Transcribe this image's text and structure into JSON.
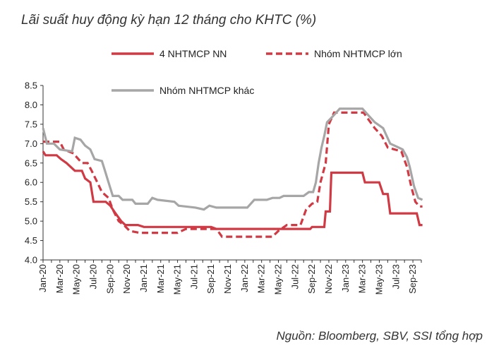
{
  "title": "Lãi suất huy động kỳ hạn 12 tháng cho KHTC (%)",
  "source": "Nguồn:  Bloomberg, SBV, SSI tổng hợp",
  "chart_data": {
    "type": "line",
    "title": "Lãi suất huy động kỳ hạn 12 tháng cho KHTC (%)",
    "xlabel": "",
    "ylabel": "",
    "ylim": [
      4.0,
      8.5
    ],
    "yticks": [
      "4.0",
      "4.5",
      "5.0",
      "5.5",
      "6.0",
      "6.5",
      "7.0",
      "7.5",
      "8.0",
      "8.5"
    ],
    "xticks": [
      "Jan-20",
      "Mar-20",
      "May-20",
      "Jul-20",
      "Sep-20",
      "Nov-20",
      "Jan-21",
      "Mar-21",
      "May-21",
      "Jul-21",
      "Sep-21",
      "Nov-21",
      "Jan-22",
      "Mar-22",
      "May-22",
      "Jul-22",
      "Sep-22",
      "Nov-22",
      "Jan-23",
      "Mar-23",
      "May-23",
      "Jul-23",
      "Sep-23"
    ],
    "x_range": [
      "Jan-20",
      "Oct-23"
    ],
    "grid": false,
    "legend_position": "top",
    "series": [
      {
        "name": "4 NHTMCP NN",
        "color": "#d03a44",
        "style": "solid",
        "points": [
          [
            "2020-01-01",
            6.8
          ],
          [
            "2020-01-10",
            6.7
          ],
          [
            "2020-02-20",
            6.7
          ],
          [
            "2020-03-05",
            6.6
          ],
          [
            "2020-03-25",
            6.5
          ],
          [
            "2020-04-10",
            6.4
          ],
          [
            "2020-04-25",
            6.3
          ],
          [
            "2020-05-20",
            6.3
          ],
          [
            "2020-06-01",
            6.1
          ],
          [
            "2020-06-20",
            6.0
          ],
          [
            "2020-07-01",
            5.5
          ],
          [
            "2020-08-15",
            5.5
          ],
          [
            "2020-09-01",
            5.4
          ],
          [
            "2020-09-20",
            5.2
          ],
          [
            "2020-10-10",
            5.0
          ],
          [
            "2020-10-25",
            4.9
          ],
          [
            "2020-12-10",
            4.9
          ],
          [
            "2021-01-01",
            4.85
          ],
          [
            "2021-09-01",
            4.85
          ],
          [
            "2021-09-20",
            4.8
          ],
          [
            "2022-08-25",
            4.8
          ],
          [
            "2022-09-01",
            4.85
          ],
          [
            "2022-10-15",
            4.85
          ],
          [
            "2022-10-20",
            5.25
          ],
          [
            "2022-11-05",
            5.25
          ],
          [
            "2022-11-10",
            6.25
          ],
          [
            "2023-03-01",
            6.25
          ],
          [
            "2023-03-10",
            6.0
          ],
          [
            "2023-05-01",
            6.0
          ],
          [
            "2023-05-15",
            5.7
          ],
          [
            "2023-06-01",
            5.7
          ],
          [
            "2023-06-10",
            5.2
          ],
          [
            "2023-09-15",
            5.2
          ],
          [
            "2023-09-25",
            4.9
          ],
          [
            "2023-10-05",
            4.9
          ]
        ]
      },
      {
        "name": "Nhóm NHTMCP lớn",
        "color": "#d03a44",
        "style": "dashed",
        "points": [
          [
            "2020-01-01",
            7.05
          ],
          [
            "2020-03-01",
            7.05
          ],
          [
            "2020-03-15",
            6.85
          ],
          [
            "2020-04-20",
            6.75
          ],
          [
            "2020-05-01",
            6.65
          ],
          [
            "2020-05-20",
            6.5
          ],
          [
            "2020-06-10",
            6.5
          ],
          [
            "2020-06-25",
            6.3
          ],
          [
            "2020-07-15",
            6.0
          ],
          [
            "2020-08-01",
            5.75
          ],
          [
            "2020-08-25",
            5.6
          ],
          [
            "2020-09-10",
            5.3
          ],
          [
            "2020-10-01",
            5.0
          ],
          [
            "2020-10-20",
            4.9
          ],
          [
            "2020-11-10",
            4.75
          ],
          [
            "2020-12-15",
            4.7
          ],
          [
            "2021-05-01",
            4.7
          ],
          [
            "2021-06-01",
            4.8
          ],
          [
            "2021-09-20",
            4.8
          ],
          [
            "2021-10-10",
            4.6
          ],
          [
            "2022-04-10",
            4.6
          ],
          [
            "2022-05-01",
            4.75
          ],
          [
            "2022-06-01",
            4.9
          ],
          [
            "2022-07-20",
            4.9
          ],
          [
            "2022-08-10",
            5.3
          ],
          [
            "2022-09-01",
            5.45
          ],
          [
            "2022-09-20",
            5.5
          ],
          [
            "2022-10-01",
            6.0
          ],
          [
            "2022-10-20",
            6.5
          ],
          [
            "2022-11-01",
            7.5
          ],
          [
            "2022-11-20",
            7.8
          ],
          [
            "2023-03-05",
            7.8
          ],
          [
            "2023-03-25",
            7.6
          ],
          [
            "2023-04-15",
            7.4
          ],
          [
            "2023-05-10",
            7.2
          ],
          [
            "2023-06-01",
            6.9
          ],
          [
            "2023-07-20",
            6.8
          ],
          [
            "2023-08-10",
            6.4
          ],
          [
            "2023-08-25",
            5.9
          ],
          [
            "2023-09-10",
            5.5
          ],
          [
            "2023-09-25",
            5.38
          ],
          [
            "2023-10-05",
            5.38
          ]
        ]
      },
      {
        "name": "Nhóm NHTMCP khác",
        "color": "#a6a6a6",
        "style": "solid",
        "points": [
          [
            "2020-01-01",
            7.4
          ],
          [
            "2020-01-15",
            7.0
          ],
          [
            "2020-02-10",
            7.0
          ],
          [
            "2020-03-01",
            6.85
          ],
          [
            "2020-04-15",
            6.8
          ],
          [
            "2020-04-25",
            7.15
          ],
          [
            "2020-05-15",
            7.1
          ],
          [
            "2020-06-01",
            6.95
          ],
          [
            "2020-06-20",
            6.85
          ],
          [
            "2020-07-05",
            6.6
          ],
          [
            "2020-08-01",
            6.55
          ],
          [
            "2020-08-10",
            6.35
          ],
          [
            "2020-08-25",
            6.0
          ],
          [
            "2020-09-10",
            5.65
          ],
          [
            "2020-10-01",
            5.65
          ],
          [
            "2020-10-15",
            5.55
          ],
          [
            "2020-11-20",
            5.55
          ],
          [
            "2020-12-01",
            5.45
          ],
          [
            "2021-01-15",
            5.45
          ],
          [
            "2021-02-01",
            5.6
          ],
          [
            "2021-02-20",
            5.55
          ],
          [
            "2021-04-20",
            5.5
          ],
          [
            "2021-05-05",
            5.4
          ],
          [
            "2021-07-05",
            5.35
          ],
          [
            "2021-08-05",
            5.3
          ],
          [
            "2021-08-25",
            5.4
          ],
          [
            "2021-09-20",
            5.35
          ],
          [
            "2022-01-10",
            5.35
          ],
          [
            "2022-02-05",
            5.55
          ],
          [
            "2022-03-20",
            5.55
          ],
          [
            "2022-04-10",
            5.6
          ],
          [
            "2022-05-05",
            5.6
          ],
          [
            "2022-05-20",
            5.65
          ],
          [
            "2022-08-01",
            5.65
          ],
          [
            "2022-08-20",
            5.75
          ],
          [
            "2022-09-05",
            5.75
          ],
          [
            "2022-09-15",
            6.0
          ],
          [
            "2022-09-25",
            6.5
          ],
          [
            "2022-10-05",
            6.9
          ],
          [
            "2022-10-15",
            7.2
          ],
          [
            "2022-10-25",
            7.55
          ],
          [
            "2022-11-15",
            7.7
          ],
          [
            "2022-12-10",
            7.9
          ],
          [
            "2023-03-01",
            7.9
          ],
          [
            "2023-03-20",
            7.75
          ],
          [
            "2023-04-15",
            7.55
          ],
          [
            "2023-05-15",
            7.4
          ],
          [
            "2023-06-10",
            7.0
          ],
          [
            "2023-07-10",
            6.9
          ],
          [
            "2023-07-25",
            6.85
          ],
          [
            "2023-08-10",
            6.65
          ],
          [
            "2023-08-20",
            6.4
          ],
          [
            "2023-09-05",
            5.9
          ],
          [
            "2023-09-20",
            5.6
          ],
          [
            "2023-10-05",
            5.55
          ]
        ]
      }
    ]
  }
}
